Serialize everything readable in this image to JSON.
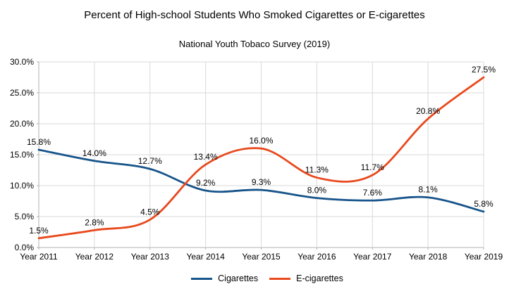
{
  "chart_data": {
    "type": "line",
    "smooth": true,
    "title": "Percent of High-school Students Who Smoked Cigarettes or E-cigarettes",
    "subtitle": "National Youth Tobaco Survey (2019)",
    "categories": [
      "Year 2011",
      "Year 2012",
      "Year 2013",
      "Year 2014",
      "Year 2015",
      "Year 2016",
      "Year 2017",
      "Year 2018",
      "Year 2019"
    ],
    "series": [
      {
        "name": "Cigarettes",
        "color": "#17548A",
        "values": [
          15.8,
          14.0,
          12.7,
          9.2,
          9.3,
          8.0,
          7.6,
          8.1,
          5.8
        ]
      },
      {
        "name": "E-cigarettes",
        "color": "#E8491D",
        "values": [
          1.5,
          2.8,
          4.5,
          13.4,
          16.0,
          11.3,
          11.7,
          20.8,
          27.5
        ]
      }
    ],
    "ylim": [
      0,
      30
    ],
    "y_tick_step": 5,
    "y_tick_labels": [
      "0.0%",
      "5.0%",
      "10.0%",
      "15.0%",
      "20.0%",
      "25.0%",
      "30.0%"
    ],
    "data_labels": true,
    "data_label_format": "one-decimal-percent",
    "grid": true,
    "legend_position": "bottom",
    "colors": {
      "grid": "#D9D9D9",
      "axis": "#B0B0B0",
      "text": "#000000",
      "background": "#FFFFFF"
    }
  }
}
